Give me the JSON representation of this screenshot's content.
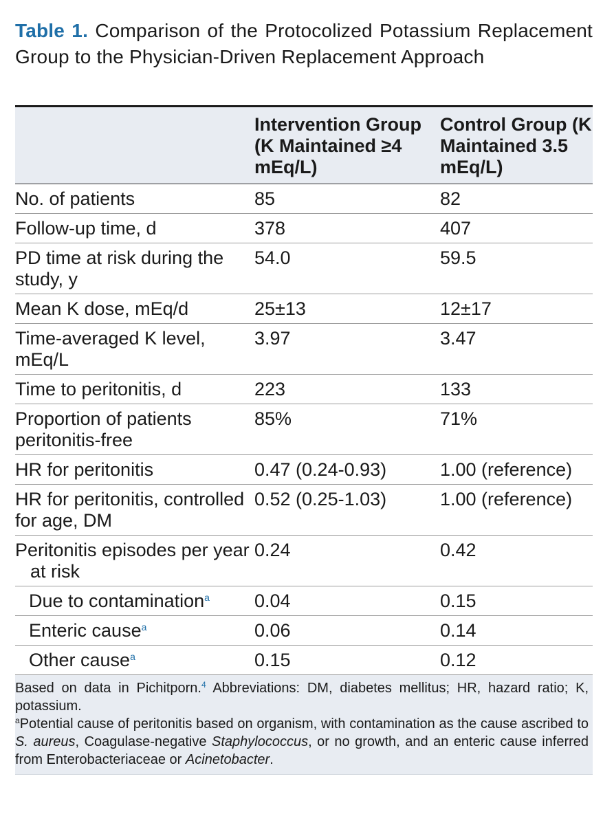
{
  "caption": {
    "label": "Table 1.",
    "text": "Comparison of the Protocolized Potassium Replacement Group to the Physician-Driven Replacement Approach"
  },
  "table": {
    "headers": [
      "",
      "Intervention Group (K Maintained ≥4 mEq/L)",
      "Control Group (K Maintained 3.5 mEq/L)"
    ],
    "rows": [
      {
        "label": "No. of patients",
        "intervention": "85",
        "control": "82"
      },
      {
        "label": "Follow-up time, d",
        "intervention": "378",
        "control": "407"
      },
      {
        "label": "PD time at risk during the study, y",
        "intervention": "54.0",
        "control": "59.5"
      },
      {
        "label": "Mean K dose, mEq/d",
        "intervention": "25±13",
        "control": "12±17"
      },
      {
        "label": "Time-averaged K level, mEq/L",
        "intervention": "3.97",
        "control": "3.47"
      },
      {
        "label": "Time to peritonitis, d",
        "intervention": "223",
        "control": "133"
      },
      {
        "label": "Proportion of patients peritonitis-free",
        "intervention": "85%",
        "control": "71%"
      },
      {
        "label": "HR for peritonitis",
        "intervention": "0.47 (0.24-0.93)",
        "control": "1.00 (reference)"
      },
      {
        "label": "HR for peritonitis, controlled for age, DM",
        "intervention": "0.52 (0.25-1.03)",
        "control": "1.00 (reference)"
      },
      {
        "label": "Peritonitis episodes per year at risk",
        "intervention": "0.24",
        "control": "0.42"
      },
      {
        "label": "Due to contamination",
        "footnote": "a",
        "intervention": "0.04",
        "control": "0.15"
      },
      {
        "label": "Enteric cause",
        "footnote": "a",
        "intervention": "0.06",
        "control": "0.14"
      },
      {
        "label": "Other cause",
        "footnote": "a",
        "intervention": "0.15",
        "control": "0.12"
      }
    ]
  },
  "footnotes": {
    "source_prefix": "Based on data in Pichitporn.",
    "source_ref": "4",
    "source_suffix": " Abbreviations: DM, diabetes mellitus; HR, hazard ratio; K, potassium.",
    "note_marker": "a",
    "note_part1": "Potential cause of peritonitis based on organism, with contamination as the cause ascribed to ",
    "note_italic1": "S. aureus",
    "note_part2": ", Coagulase-negative ",
    "note_italic2": "Staphylococcus",
    "note_part3": ", or no growth, and an enteric cause inferred from Enterobacteriaceae or ",
    "note_italic3": "Acinetobacter",
    "note_part4": "."
  },
  "colors": {
    "accent": "#1f6fa8",
    "header_background": "#e8ecf2"
  }
}
